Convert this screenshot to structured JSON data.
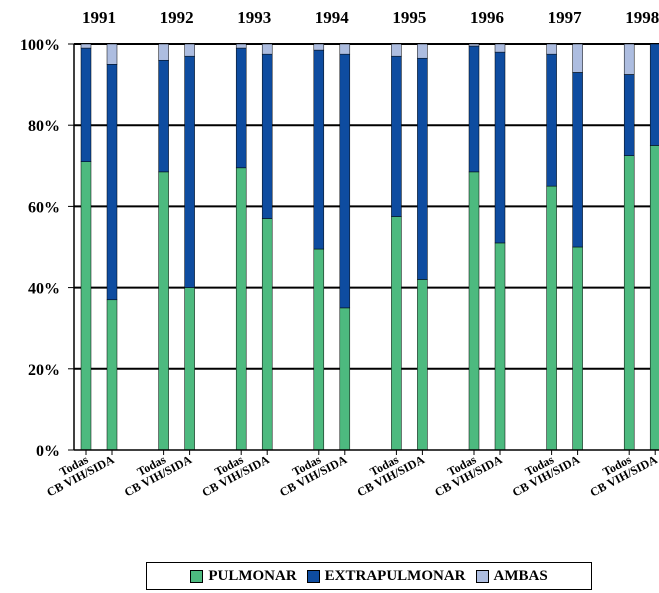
{
  "chart_data": {
    "type": "bar",
    "stacked": true,
    "percent": true,
    "ylim": [
      0,
      100
    ],
    "y_ticks": [
      "0%",
      "20%",
      "40%",
      "60%",
      "80%",
      "100%"
    ],
    "grid": true,
    "legend_position": "bottom",
    "groups": [
      {
        "year": "1991",
        "bars": [
          {
            "label": "Todas",
            "values": [
              71,
              28,
              1
            ]
          },
          {
            "label": "CB VIH/SIDA",
            "values": [
              37,
              58,
              5
            ]
          }
        ]
      },
      {
        "year": "1992",
        "bars": [
          {
            "label": "Todas",
            "values": [
              68.5,
              27.5,
              4
            ]
          },
          {
            "label": "CB VIH/SIDA",
            "values": [
              40,
              57,
              3
            ]
          }
        ]
      },
      {
        "year": "1993",
        "bars": [
          {
            "label": "Todas",
            "values": [
              69.5,
              29.5,
              1
            ]
          },
          {
            "label": "CB VIH/SIDA",
            "values": [
              57,
              40.5,
              2.5
            ]
          }
        ]
      },
      {
        "year": "1994",
        "bars": [
          {
            "label": "Todas",
            "values": [
              49.5,
              49,
              1.5
            ]
          },
          {
            "label": "CB VIH/SIDA",
            "values": [
              35,
              62.5,
              2.5
            ]
          }
        ]
      },
      {
        "year": "1995",
        "bars": [
          {
            "label": "Todas",
            "values": [
              57.5,
              39.5,
              3
            ]
          },
          {
            "label": "CB VIH/SIDA",
            "values": [
              42,
              54.5,
              3.5
            ]
          }
        ]
      },
      {
        "year": "1996",
        "bars": [
          {
            "label": "Todas",
            "values": [
              68.5,
              31,
              0.5
            ]
          },
          {
            "label": "CB VIH/SIDA",
            "values": [
              51,
              47,
              2
            ]
          }
        ]
      },
      {
        "year": "1997",
        "bars": [
          {
            "label": "Todas",
            "values": [
              65,
              32.5,
              2.5
            ]
          },
          {
            "label": "CB VIH/SIDA",
            "values": [
              50,
              43,
              7
            ]
          }
        ]
      },
      {
        "year": "1998",
        "bars": [
          {
            "label": "Todos",
            "values": [
              72.5,
              20,
              7.5
            ]
          },
          {
            "label": "CB VIH/SIDA",
            "values": [
              75,
              25,
              0
            ]
          }
        ]
      }
    ],
    "series": [
      {
        "name": "PULMONAR",
        "color": "#4dba7f"
      },
      {
        "name": "EXTRAPULMONAR",
        "color": "#0e4ca0"
      },
      {
        "name": "AMBAS",
        "color": "#adbde0"
      }
    ]
  },
  "legend": {
    "pulmonar": "PULMONAR",
    "extrapulmonar": "EXTRAPULMONAR",
    "ambas": "AMBAS"
  }
}
